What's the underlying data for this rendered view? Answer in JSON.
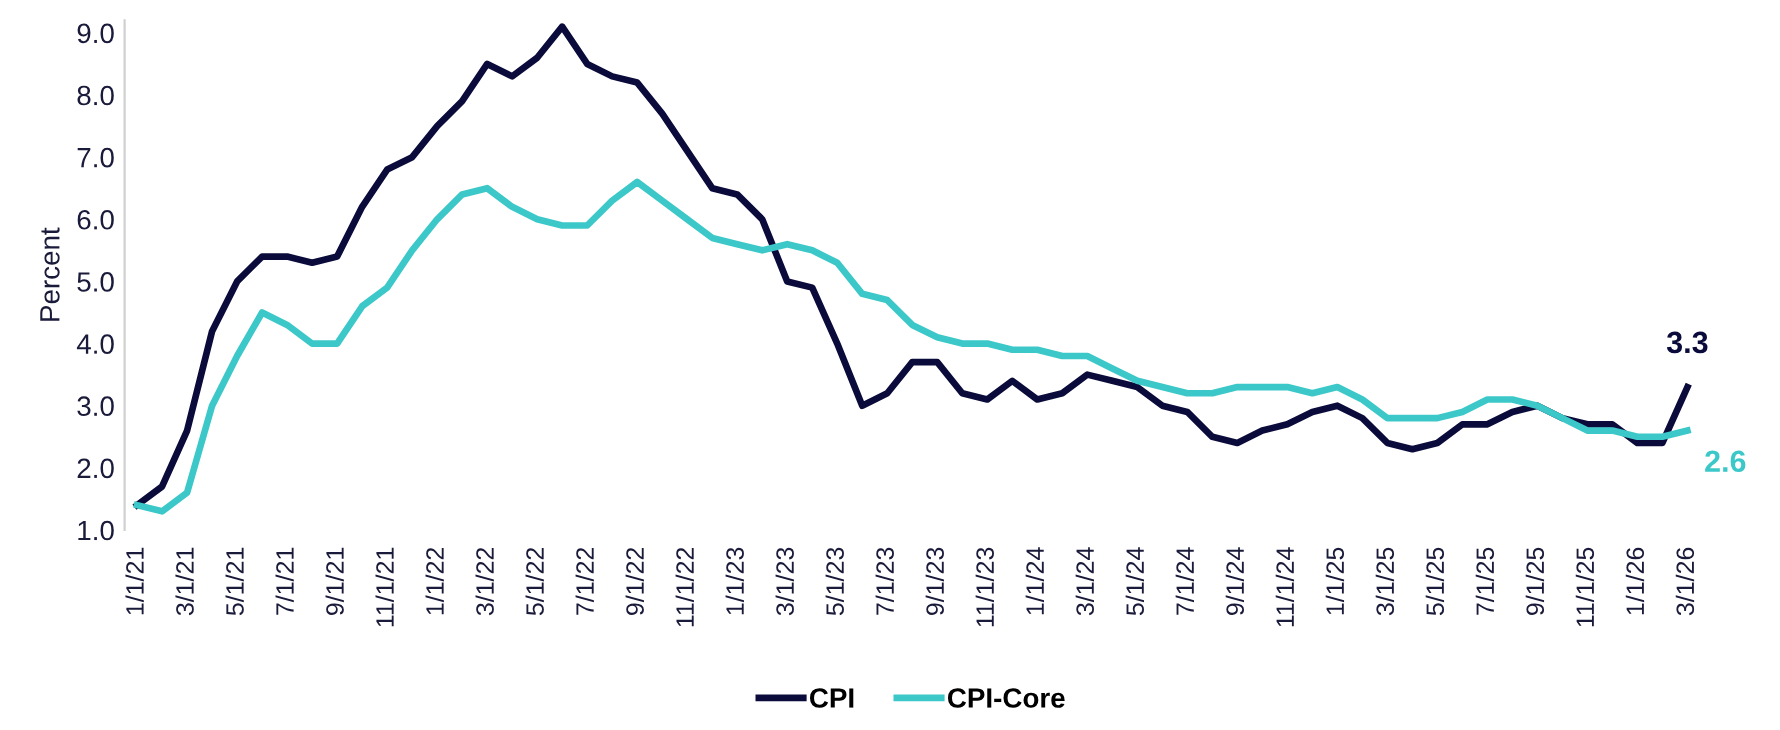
{
  "chart_data": {
    "type": "line",
    "ylabel": "Percent",
    "categories": [
      "1/1/21",
      null,
      "3/1/21",
      null,
      "5/1/21",
      null,
      "7/1/21",
      null,
      "9/1/21",
      null,
      "11/1/21",
      null,
      "1/1/22",
      null,
      "3/1/22",
      null,
      "5/1/22",
      null,
      "7/1/22",
      null,
      "9/1/22",
      null,
      "11/1/22",
      null,
      "1/1/23",
      null,
      "3/1/23",
      null,
      "5/1/23",
      null,
      "7/1/23",
      null,
      "9/1/23",
      null,
      "11/1/23",
      null,
      "1/1/24",
      null,
      "3/1/24",
      null,
      "5/1/24",
      null,
      "7/1/24",
      null,
      "9/1/24",
      null,
      "11/1/24",
      null,
      "1/1/25",
      null,
      "3/1/25",
      null,
      "5/1/25",
      null,
      "7/1/25",
      null,
      "9/1/25",
      null,
      "11/1/25",
      null,
      "1/1/26",
      null,
      "3/1/26"
    ],
    "series": [
      {
        "name": "CPI",
        "color": "#0b0b3b",
        "values": [
          1.4,
          1.7,
          2.6,
          4.2,
          5.0,
          5.4,
          5.4,
          5.3,
          5.4,
          6.2,
          6.8,
          7.0,
          7.5,
          7.9,
          8.5,
          8.3,
          8.6,
          9.1,
          8.5,
          8.3,
          8.2,
          7.7,
          7.1,
          6.5,
          6.4,
          6.0,
          5.0,
          4.9,
          4.0,
          3.0,
          3.2,
          3.7,
          3.7,
          3.2,
          3.1,
          3.4,
          3.1,
          3.2,
          3.5,
          3.4,
          3.3,
          3.0,
          2.9,
          2.5,
          2.4,
          2.6,
          2.7,
          2.9,
          3.0,
          2.8,
          2.4,
          2.3,
          2.4,
          2.7,
          2.7,
          2.9,
          3.0,
          2.8,
          2.7,
          2.7,
          2.4,
          2.4,
          3.3
        ]
      },
      {
        "name": "CPI-Core",
        "color": "#3cc8c8",
        "values": [
          1.4,
          1.3,
          1.6,
          3.0,
          3.8,
          4.5,
          4.3,
          4.0,
          4.0,
          4.6,
          4.9,
          5.5,
          6.0,
          6.4,
          6.5,
          6.2,
          6.0,
          5.9,
          5.9,
          6.3,
          6.6,
          6.3,
          6.0,
          5.7,
          5.6,
          5.5,
          5.6,
          5.5,
          5.3,
          4.8,
          4.7,
          4.3,
          4.1,
          4.0,
          4.0,
          3.9,
          3.9,
          3.8,
          3.8,
          3.6,
          3.4,
          3.3,
          3.2,
          3.2,
          3.3,
          3.3,
          3.3,
          3.2,
          3.3,
          3.1,
          2.8,
          2.8,
          2.8,
          2.9,
          3.1,
          3.1,
          3.0,
          2.8,
          2.6,
          2.6,
          2.5,
          2.5,
          2.6
        ]
      }
    ],
    "annotations": [
      {
        "text": "3.3",
        "x": "3/1/26",
        "y": 3.3
      },
      {
        "text": "2.6",
        "x": "3/1/26",
        "y": 2.6
      }
    ],
    "ylim": [
      1.0,
      9.2
    ],
    "yticks": [
      {
        "value": 1,
        "label": "1.0"
      },
      {
        "value": 2,
        "label": "2.0"
      },
      {
        "value": 3,
        "label": "3.0"
      },
      {
        "value": 4,
        "label": "4.0"
      },
      {
        "value": 5,
        "label": "5.0"
      },
      {
        "value": 6,
        "label": "6.0"
      },
      {
        "value": 7,
        "label": "7.0"
      },
      {
        "value": 8,
        "label": "8.0"
      },
      {
        "value": 9,
        "label": "9.0"
      }
    ],
    "grid": false,
    "legend": "bottom",
    "marker": "none",
    "line_style": "solid"
  }
}
